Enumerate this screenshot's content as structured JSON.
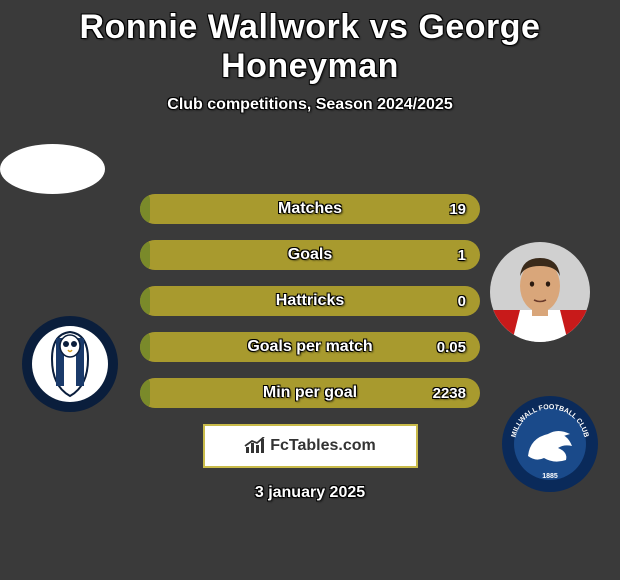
{
  "title": "Ronnie Wallwork vs George Honeyman",
  "subtitle": "Club competitions, Season 2024/2025",
  "date": "3 january 2025",
  "watermark_text": "FcTables.com",
  "colors": {
    "background": "#3a3a3a",
    "bar_bg": "#a89a2e",
    "bar_fill": "#7a8a2a",
    "text_white": "#ffffff",
    "watermark_border": "#c9bb4a",
    "watermark_bg": "#ffffff",
    "watermark_text": "#333333"
  },
  "stats": [
    {
      "label": "Matches",
      "value": "19",
      "fill_pct": 3
    },
    {
      "label": "Goals",
      "value": "1",
      "fill_pct": 3
    },
    {
      "label": "Hattricks",
      "value": "0",
      "fill_pct": 3
    },
    {
      "label": "Goals per match",
      "value": "0.05",
      "fill_pct": 3
    },
    {
      "label": "Min per goal",
      "value": "2238",
      "fill_pct": 3
    }
  ],
  "badges": {
    "left": {
      "outer_ring": "#0a1e3c",
      "inner": "#ffffff",
      "stripe": "#1a3a6a"
    },
    "right": {
      "outer_ring": "#0a2a5a",
      "inner": "#ffffff",
      "accent": "#1a4a8a",
      "text": "MILLWALL FOOTBALL CLUB"
    }
  },
  "player_right": {
    "skin": "#d9a67a",
    "hair": "#3a2a1a",
    "shirt_red": "#c81a1a",
    "shirt_white": "#ffffff"
  }
}
